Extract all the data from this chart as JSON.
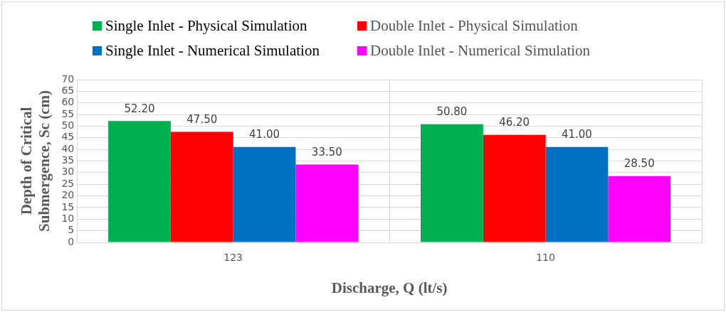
{
  "chart_data": {
    "type": "bar",
    "xlabel": "Discharge, Q (lt/s)",
    "ylabel": "Depth of Critical Submergence, Sc (cm)",
    "categories": [
      "123",
      "110"
    ],
    "series": [
      {
        "name": "Single Inlet - Physical Simulation",
        "color": "#00b050",
        "values": [
          52.2,
          50.8
        ],
        "value_labels": [
          "52.20",
          "50.80"
        ]
      },
      {
        "name": "Double Inlet - Physical Simulation",
        "color": "#ff0000",
        "values": [
          47.5,
          46.2
        ],
        "value_labels": [
          "47.50",
          "46.20"
        ]
      },
      {
        "name": "Single Inlet - Numerical Simulation",
        "color": "#0070c0",
        "values": [
          41,
          41
        ],
        "value_labels": [
          "41.00",
          "41.00"
        ]
      },
      {
        "name": "Double Inlet - Numerical Simulation",
        "color": "#ff00ff",
        "values": [
          33.5,
          28.5
        ],
        "value_labels": [
          "33.50",
          "28.50"
        ]
      }
    ],
    "ylim": [
      0,
      70
    ],
    "yticks": [
      0,
      5,
      10,
      15,
      20,
      25,
      30,
      35,
      40,
      45,
      50,
      55,
      60,
      65,
      70
    ],
    "grid": true,
    "legend": "top"
  }
}
